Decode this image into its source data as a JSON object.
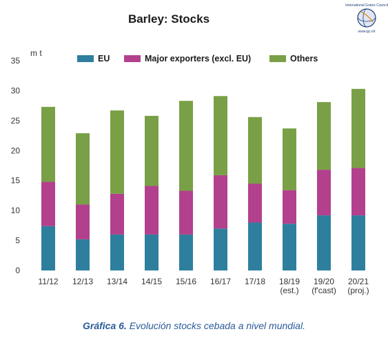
{
  "logo": {
    "org_name": "International Grains Council",
    "url": "www.igc.int"
  },
  "caption": {
    "label": "Gráfica 6.",
    "text": "Evolución stocks cebada a nivel mundial."
  },
  "chart_data": {
    "type": "bar",
    "stacked": true,
    "title": "Barley: Stocks",
    "ylabel": "m t",
    "xlabel": "",
    "ylim": [
      0,
      35
    ],
    "yticks": [
      0,
      5,
      10,
      15,
      20,
      25,
      30,
      35
    ],
    "grid": false,
    "legend_position": "top",
    "categories": [
      [
        "11/12"
      ],
      [
        "12/13"
      ],
      [
        "13/14"
      ],
      [
        "14/15"
      ],
      [
        "15/16"
      ],
      [
        "16/17"
      ],
      [
        "17/18"
      ],
      [
        "18/19",
        "(est.)"
      ],
      [
        "19/20",
        "(f'cast)"
      ],
      [
        "20/21",
        "(proj.)"
      ]
    ],
    "series": [
      {
        "name": "EU",
        "color": "#2e7f9e",
        "values": [
          7.4,
          5.2,
          6.0,
          6.0,
          6.0,
          7.0,
          8.0,
          7.8,
          9.2,
          9.2
        ]
      },
      {
        "name": "Major exporters (excl. EU)",
        "color": "#b2408d",
        "values": [
          7.4,
          5.8,
          6.8,
          8.1,
          7.3,
          8.9,
          6.5,
          5.6,
          7.6,
          7.9
        ]
      },
      {
        "name": "Others",
        "color": "#79a046",
        "values": [
          12.5,
          11.9,
          13.9,
          11.7,
          15.0,
          13.2,
          11.1,
          10.3,
          11.3,
          13.2
        ]
      }
    ]
  }
}
